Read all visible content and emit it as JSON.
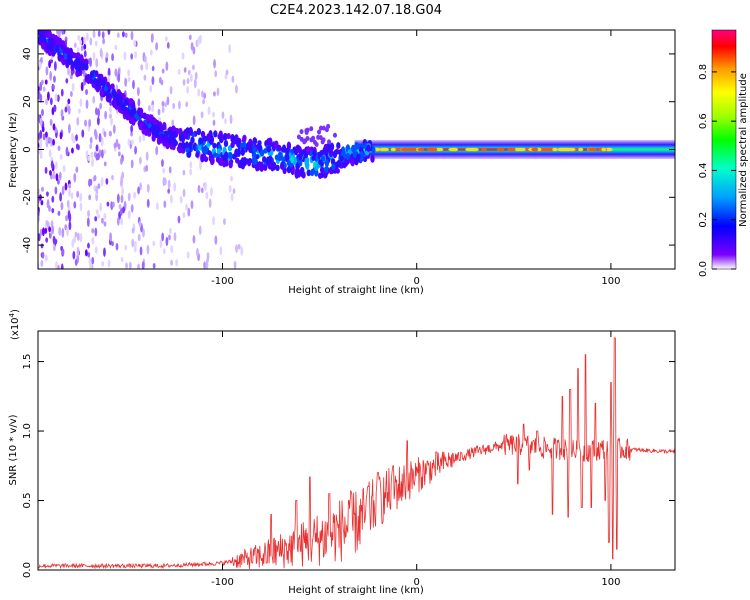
{
  "title": "C2E4.2023.142.07.18.G04",
  "chart_data": [
    {
      "type": "heatmap",
      "xlabel": "Height of straight line (km)",
      "ylabel": "Frequency (Hz)",
      "xlim": [
        -195,
        133
      ],
      "ylim": [
        -50,
        50
      ],
      "x_ticks": [
        -100,
        0,
        100
      ],
      "x_tick_labels": [
        "-100",
        "0",
        "100"
      ],
      "y_ticks": [
        -40,
        -20,
        0,
        20,
        40
      ],
      "y_tick_labels": [
        "-40",
        "-20",
        "0",
        "20",
        "40"
      ],
      "colorbar": {
        "label": "Normalized spectral amplitude",
        "range": [
          0,
          0.97
        ],
        "ticks": [
          0.0,
          0.2,
          0.4,
          0.6,
          0.8
        ],
        "tick_labels": [
          "0.0",
          "0.2",
          "0.4",
          "0.6",
          "0.8"
        ],
        "colormap": [
          "#ffffff",
          "#7a00ff",
          "#0000ff",
          "#00a0ff",
          "#00ffcc",
          "#00ff00",
          "#a0ff00",
          "#ffff00",
          "#ff9900",
          "#ff0000",
          "#ff0080"
        ]
      },
      "ridge": {
        "description_points": [
          [
            -195,
            48
          ],
          [
            -170,
            33
          ],
          [
            -150,
            18
          ],
          [
            -135,
            8
          ],
          [
            -120,
            3
          ],
          [
            -100,
            0
          ],
          [
            -80,
            -2
          ],
          [
            -60,
            -5
          ],
          [
            -50,
            -6
          ],
          [
            -40,
            -3
          ],
          [
            -30,
            -1
          ],
          [
            -20,
            0
          ],
          [
            0,
            0
          ],
          [
            133,
            0
          ]
        ]
      }
    },
    {
      "type": "line",
      "xlabel": "Height of straight line (km)",
      "ylabel": "SNR (10 * v/v)",
      "y_multiplier": "(x10",
      "y_multiplier_exp": "4",
      "y_multiplier_close": ")",
      "xlim": [
        -195,
        133
      ],
      "ylim": [
        0,
        1.72
      ],
      "x_ticks": [
        -100,
        0,
        100
      ],
      "x_tick_labels": [
        "-100",
        "0",
        "100"
      ],
      "y_ticks": [
        0.0,
        0.5,
        1.0,
        1.5
      ],
      "y_tick_labels": [
        "0.0",
        "0.5",
        "1.0",
        "1.5"
      ],
      "color": "#e83030",
      "envelope": [
        [
          -195,
          0.03
        ],
        [
          -130,
          0.03
        ],
        [
          -100,
          0.05
        ],
        [
          -80,
          0.1
        ],
        [
          -60,
          0.18
        ],
        [
          -45,
          0.25
        ],
        [
          -30,
          0.35
        ],
        [
          -15,
          0.55
        ],
        [
          0,
          0.68
        ],
        [
          15,
          0.78
        ],
        [
          30,
          0.85
        ],
        [
          45,
          0.9
        ],
        [
          55,
          0.9
        ],
        [
          65,
          0.88
        ],
        [
          75,
          0.87
        ],
        [
          85,
          0.85
        ],
        [
          95,
          0.87
        ],
        [
          105,
          0.87
        ],
        [
          133,
          0.85
        ]
      ],
      "spikes": [
        [
          -75,
          0.4
        ],
        [
          -62,
          0.5
        ],
        [
          -55,
          0.67
        ],
        [
          -45,
          0.55
        ],
        [
          -35,
          0.5
        ],
        [
          -25,
          0.6
        ],
        [
          -20,
          0.7
        ],
        [
          -12,
          0.75
        ],
        [
          -5,
          0.93
        ],
        [
          10,
          0.85
        ],
        [
          55,
          1.05
        ],
        [
          62,
          1.0
        ],
        [
          75,
          1.25
        ],
        [
          79,
          1.3
        ],
        [
          83,
          1.45
        ],
        [
          87,
          1.55
        ],
        [
          92,
          1.2
        ],
        [
          97,
          1.72
        ],
        [
          100,
          1.35
        ],
        [
          102,
          1.67
        ]
      ],
      "dips": [
        [
          52,
          0.62
        ],
        [
          58,
          0.72
        ],
        [
          70,
          0.4
        ],
        [
          78,
          0.38
        ],
        [
          85,
          0.45
        ],
        [
          90,
          0.45
        ],
        [
          97,
          0.5
        ],
        [
          99,
          0.2
        ],
        [
          101,
          0.08
        ],
        [
          103,
          0.15
        ]
      ]
    }
  ]
}
